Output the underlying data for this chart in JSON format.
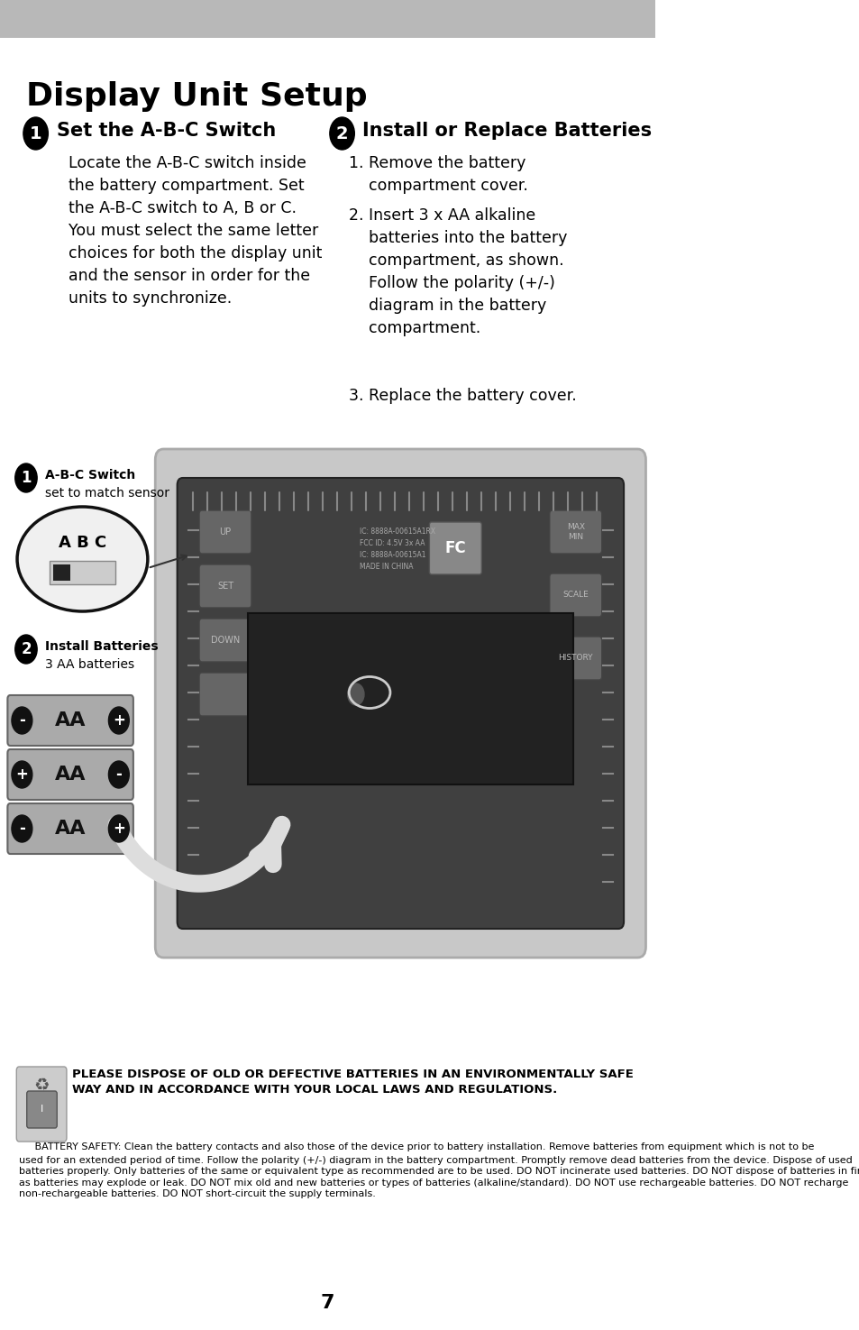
{
  "page_bg": "#ffffff",
  "header_bg": "#b8b8b8",
  "title": "Display Unit Setup",
  "section1_header": "Set the A-B-C Switch",
  "section1_body": "Locate the A-B-C switch inside\nthe battery compartment. Set\nthe A-B-C switch to A, B or C.\nYou must select the same letter\nchoices for both the display unit\nand the sensor in order for the\nunits to synchronize.",
  "section2_header": "Install or Replace Batteries",
  "section2_body_1": "1. Remove the battery\n    compartment cover.",
  "section2_body_2": "2. Insert 3 x AA alkaline\n    batteries into the battery\n    compartment, as shown.\n    Follow the polarity (+/-)\n    diagram in the battery\n    compartment.",
  "section2_body_3": "3. Replace the battery cover.",
  "diagram_label1_bold": "A-B-C Switch",
  "diagram_label1_sub": "set to match sensor",
  "diagram_label2_bold": "Install Batteries",
  "diagram_label2_sub": "3 AA batteries",
  "warning_bold": "PLEASE DISPOSE OF OLD OR DEFECTIVE BATTERIES IN AN ENVIRONMENTALLY SAFE\nWAY AND IN ACCORDANCE WITH YOUR LOCAL LAWS AND REGULATIONS.",
  "warning_body_1": "     BATTERY SAFETY: Clean the battery contacts and also those of the device prior to battery installation. Remove batteries from equipment which is not to be",
  "warning_body_2": "used for an extended period of time. Follow the polarity (+/-) diagram in the battery compartment. Promptly remove dead batteries from the device. Dispose of used\nbatteries properly. Only batteries of the same or equivalent type as recommended are to be used. DO NOT incinerate used batteries. DO NOT dispose of batteries in fire,\nas batteries may explode or leak. DO NOT mix old and new batteries or types of batteries (alkaline/standard). DO NOT use rechargeable batteries. DO NOT recharge\nnon-rechargeable batteries. DO NOT short-circuit the supply terminals.",
  "page_number": "7",
  "font_color": "#000000"
}
